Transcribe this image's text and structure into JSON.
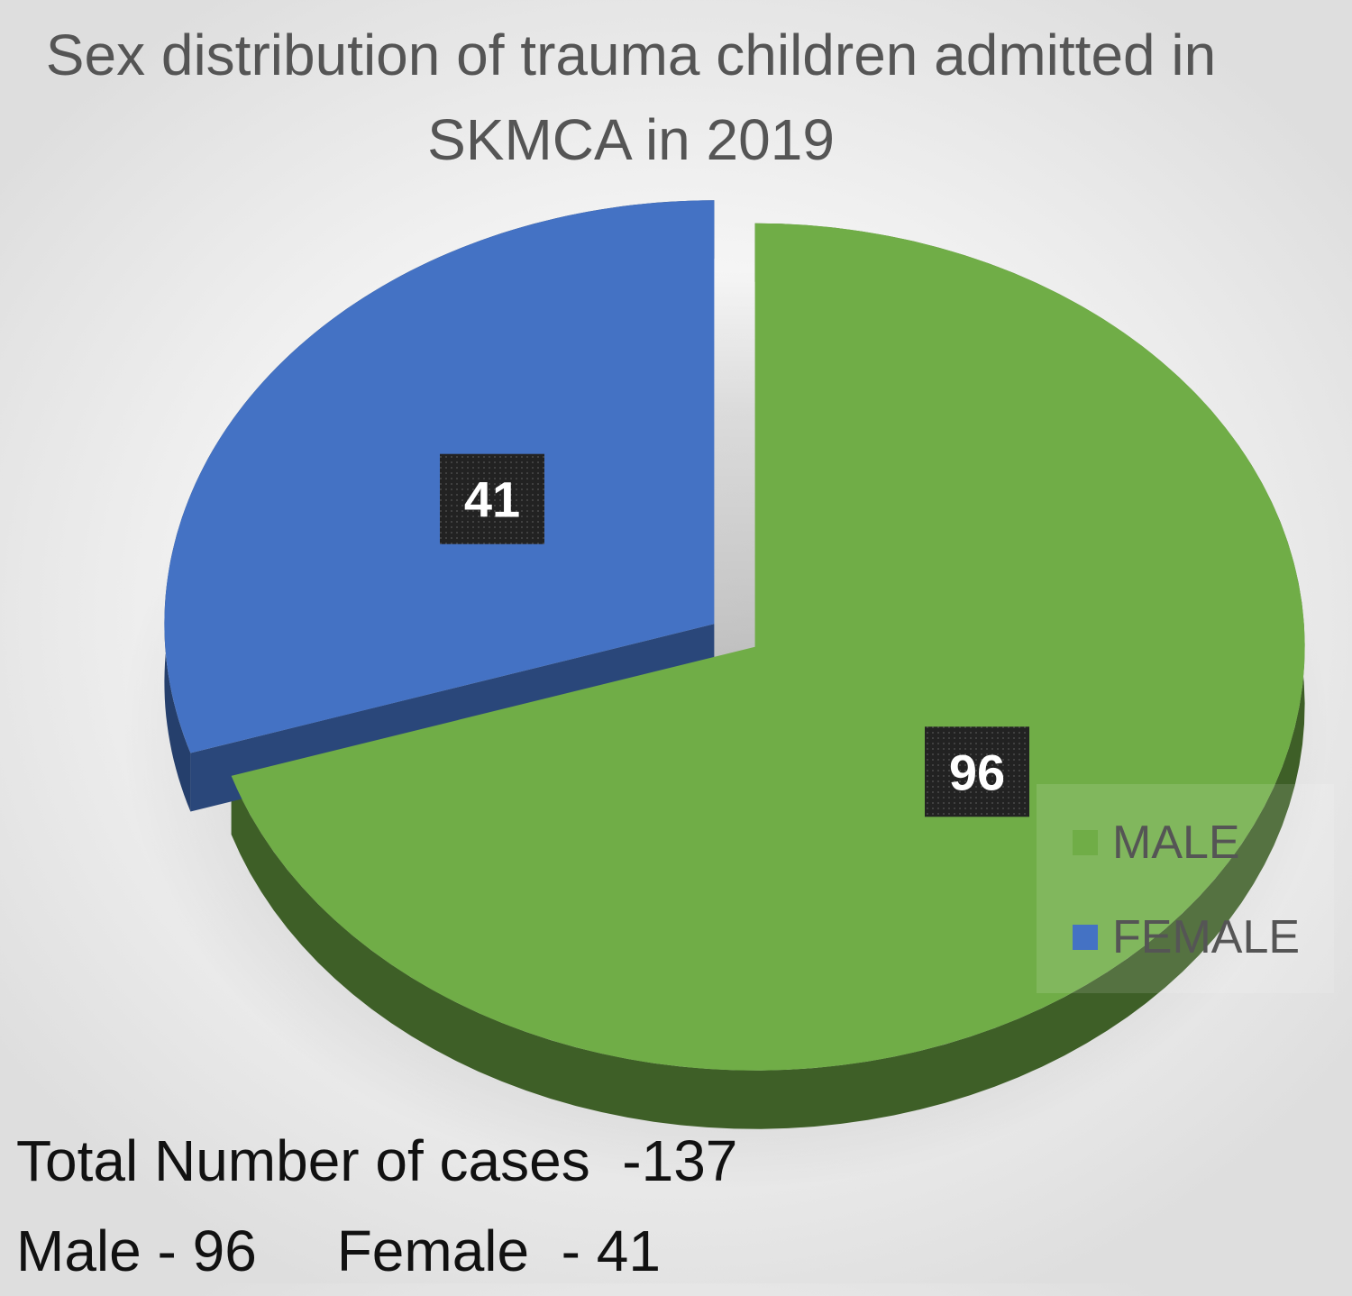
{
  "chart_data": {
    "type": "pie",
    "title": "Sex distribution of trauma children admitted in SKMCA in 2019",
    "categories": [
      "MALE",
      "FEMALE"
    ],
    "values": [
      96,
      41
    ],
    "colors": [
      "#70ad47",
      "#4472c4"
    ],
    "data_labels": [
      "96",
      "41"
    ],
    "legend": {
      "position": "right",
      "entries": [
        "MALE",
        "FEMALE"
      ]
    },
    "style": "3d-exploded"
  },
  "summary": {
    "line1": "Total Number of cases  -137",
    "line2": "Male - 96     Female  - 41"
  }
}
